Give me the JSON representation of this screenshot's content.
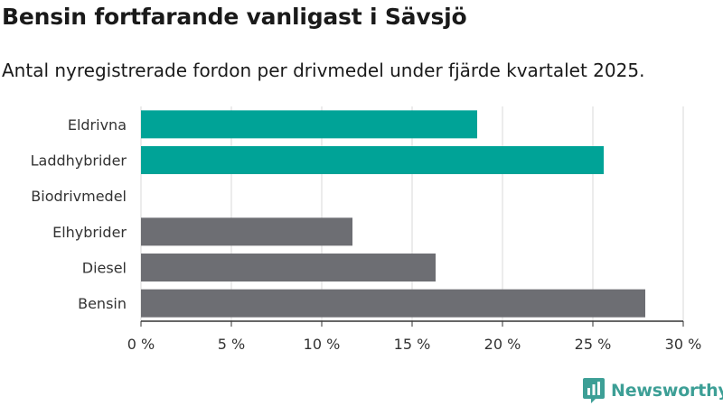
{
  "header": {
    "title": "Bensin fortfarande vanligast i Sävsjö",
    "subtitle": "Antal nyregistrerade fordon per drivmedel under fjärde kvartalet 2025."
  },
  "brand": {
    "name": "Newsworthy"
  },
  "colors": {
    "teal": "#00a397",
    "gray": "#6d6e73",
    "grid": "#d9d9d9",
    "brand": "#3d9f96"
  },
  "chart_data": {
    "type": "bar",
    "orientation": "horizontal",
    "title": "Bensin fortfarande vanligast i Sävsjö",
    "subtitle": "Antal nyregistrerade fordon per drivmedel under fjärde kvartalet 2025.",
    "categories": [
      "Eldrivna",
      "Laddhybrider",
      "Biodrivmedel",
      "Elhybrider",
      "Diesel",
      "Bensin"
    ],
    "values": [
      18.6,
      25.6,
      0,
      11.7,
      16.3,
      27.9
    ],
    "bar_colors": [
      "#00a397",
      "#00a397",
      "#00a397",
      "#6d6e73",
      "#6d6e73",
      "#6d6e73"
    ],
    "xlim": [
      0,
      30
    ],
    "xticks": [
      0,
      5,
      10,
      15,
      20,
      25,
      30
    ],
    "xtick_labels": [
      "0 %",
      "5 %",
      "10 %",
      "15 %",
      "20 %",
      "25 %",
      "30 %"
    ],
    "grid": true
  }
}
